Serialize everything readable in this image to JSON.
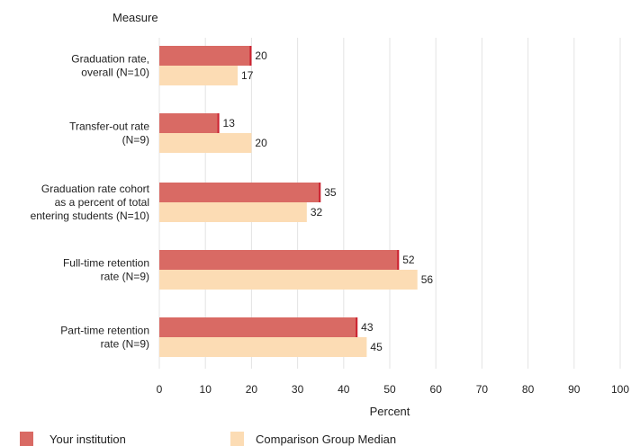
{
  "chart_data": {
    "type": "bar",
    "orientation": "horizontal",
    "title": "Measure",
    "xlabel": "Percent",
    "xlim": [
      0,
      100
    ],
    "xticks": [
      0,
      10,
      20,
      30,
      40,
      50,
      60,
      70,
      80,
      90,
      100
    ],
    "grid": true,
    "legend_position": "bottom",
    "categories": [
      [
        "Graduation rate,",
        "overall (N=10)"
      ],
      [
        "Transfer-out rate",
        "(N=9)"
      ],
      [
        "Graduation rate cohort",
        "as a percent of total",
        "entering students (N=10)"
      ],
      [
        "Full-time retention",
        "rate (N=9)"
      ],
      [
        "Part-time retention",
        "rate (N=9)"
      ]
    ],
    "series": [
      {
        "name": "Your institution",
        "values": [
          20,
          13,
          35,
          52,
          43
        ],
        "color": "#d96a64",
        "edge": "#cc2230"
      },
      {
        "name": "Comparison Group Median",
        "values": [
          17,
          20,
          32,
          56,
          45
        ],
        "color": "#fcdcb4",
        "edge": "#fcdcb4"
      }
    ]
  }
}
